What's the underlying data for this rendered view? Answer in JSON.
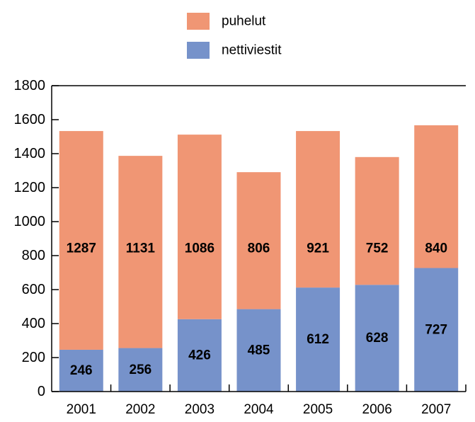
{
  "chart_data": {
    "type": "bar",
    "stacked": true,
    "categories": [
      "2001",
      "2002",
      "2003",
      "2004",
      "2005",
      "2006",
      "2007"
    ],
    "series": [
      {
        "name": "nettiviestit",
        "color": "#7692ca",
        "values": [
          246,
          256,
          426,
          485,
          612,
          628,
          727
        ]
      },
      {
        "name": "puhelut",
        "color": "#f09674",
        "values": [
          1287,
          1131,
          1086,
          806,
          921,
          752,
          840
        ]
      }
    ],
    "ylim": [
      0,
      1800
    ],
    "yticks": [
      0,
      200,
      400,
      600,
      800,
      1000,
      1200,
      1400,
      1600,
      1800
    ],
    "grid": false,
    "legend_position": "top-center",
    "title": "",
    "xlabel": "",
    "ylabel": ""
  }
}
